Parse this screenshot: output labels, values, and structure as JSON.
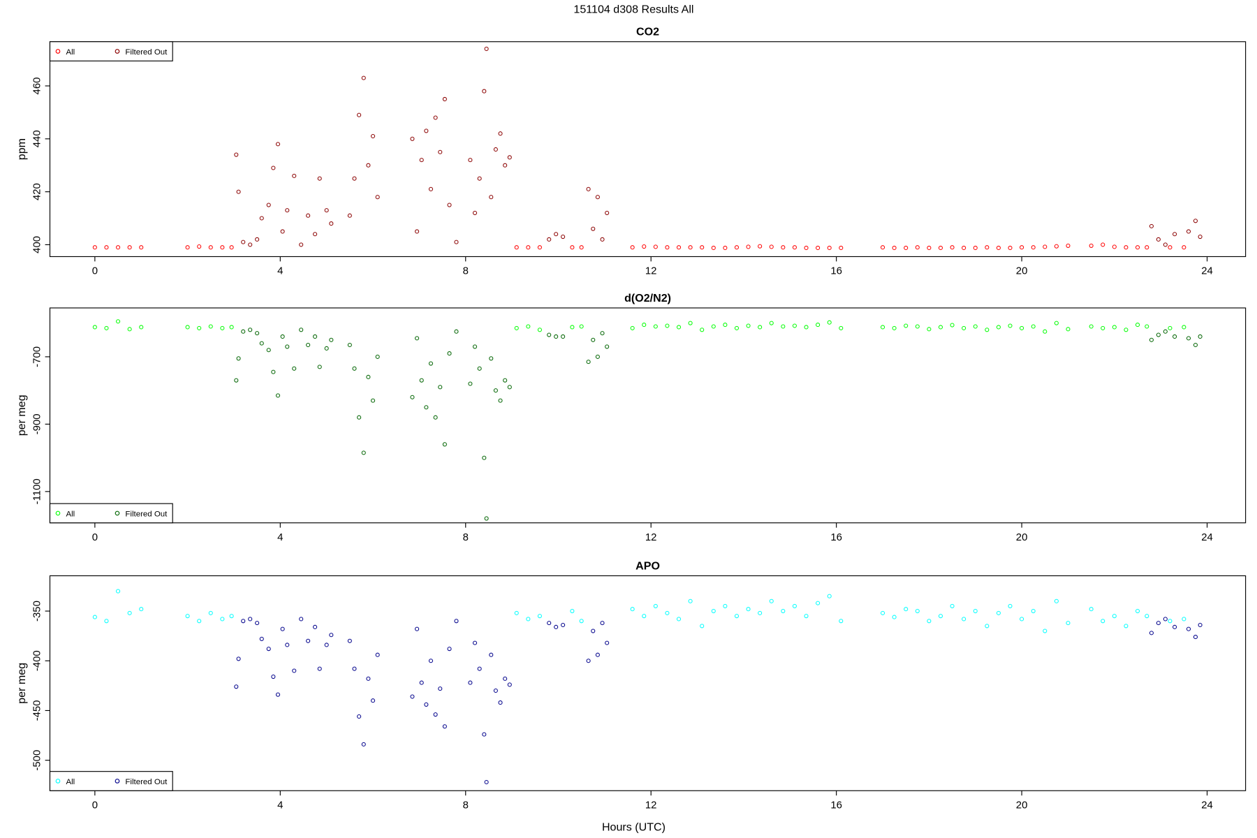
{
  "title": "151104   d308   Results All",
  "x_label": "Hours (UTC)",
  "chart_data": [
    {
      "type": "scatter",
      "title": "CO2",
      "y_label": "ppm",
      "legend": "top-left",
      "xlim": [
        -0.97,
        24.83
      ],
      "xticks": [
        0,
        4,
        8,
        12,
        16,
        20,
        24
      ],
      "ylim": [
        395.5,
        476.7
      ],
      "yticks": [
        400,
        420,
        440,
        460
      ],
      "series": [
        {
          "name": "All",
          "color": "#ff0000",
          "x": [
            0.0,
            0.25,
            0.5,
            0.75,
            1.0,
            2.0,
            2.25,
            2.5,
            2.75,
            2.95,
            9.1,
            9.35,
            9.6,
            10.3,
            10.5,
            11.6,
            11.85,
            12.1,
            12.35,
            12.6,
            12.85,
            13.1,
            13.35,
            13.6,
            13.85,
            14.1,
            14.35,
            14.6,
            14.85,
            15.1,
            15.35,
            15.6,
            15.85,
            16.1,
            17.0,
            17.25,
            17.5,
            17.75,
            18.0,
            18.25,
            18.5,
            18.75,
            19.0,
            19.25,
            19.5,
            19.75,
            20.0,
            20.25,
            20.5,
            20.75,
            21.0,
            21.5,
            21.75,
            22.0,
            22.25,
            22.5,
            22.7,
            23.2,
            23.5
          ],
          "values": [
            399,
            399,
            399,
            399,
            399,
            399,
            399.3,
            399,
            399,
            399,
            399,
            399,
            399,
            399,
            399,
            399,
            399.3,
            399.2,
            399,
            399,
            399,
            399,
            398.8,
            398.8,
            399,
            399.2,
            399.4,
            399.2,
            399,
            399,
            398.8,
            398.8,
            398.8,
            398.8,
            399,
            398.8,
            398.8,
            399,
            398.8,
            398.8,
            399,
            398.8,
            398.8,
            399,
            398.8,
            398.8,
            399,
            399,
            399.2,
            399.4,
            399.6,
            399.6,
            400,
            399.2,
            399,
            399,
            399,
            399,
            399
          ]
        },
        {
          "name": "Filtered Out",
          "color": "#8b0000",
          "x": [
            3.05,
            3.1,
            3.2,
            3.35,
            3.5,
            3.6,
            3.75,
            3.85,
            3.95,
            4.05,
            4.15,
            4.3,
            4.45,
            4.6,
            4.75,
            4.85,
            5.0,
            5.1,
            5.5,
            5.6,
            5.7,
            5.8,
            5.9,
            6.0,
            6.1,
            6.85,
            6.95,
            7.05,
            7.15,
            7.25,
            7.35,
            7.45,
            7.55,
            7.65,
            7.8,
            8.1,
            8.2,
            8.3,
            8.4,
            8.45,
            8.55,
            8.65,
            8.75,
            8.85,
            8.95,
            9.8,
            9.95,
            10.1,
            10.65,
            10.75,
            10.85,
            10.95,
            11.05,
            22.8,
            22.95,
            23.1,
            23.3,
            23.6,
            23.75,
            23.85
          ],
          "values": [
            434,
            420,
            401,
            400,
            402,
            410,
            415,
            429,
            438,
            405,
            413,
            426,
            400,
            411,
            404,
            425,
            413,
            408,
            411,
            425,
            449,
            463,
            430,
            441,
            418,
            440,
            405,
            432,
            443,
            421,
            448,
            435,
            455,
            415,
            401,
            432,
            412,
            425,
            458,
            474,
            418,
            436,
            442,
            430,
            433,
            402,
            404,
            403,
            421,
            406,
            418,
            402,
            412,
            407,
            402,
            400,
            404,
            405,
            409,
            403
          ]
        }
      ]
    },
    {
      "type": "scatter",
      "title": "d(O2/N2)",
      "y_label": "per meg",
      "legend": "bottom-left",
      "xlim": [
        -0.97,
        24.83
      ],
      "xticks": [
        0,
        4,
        8,
        12,
        16,
        20,
        24
      ],
      "ylim": [
        -1193,
        -555
      ],
      "yticks": [
        -700,
        -900,
        -1100
      ],
      "series": [
        {
          "name": "All",
          "color": "#00ff00",
          "x": [
            0.0,
            0.25,
            0.5,
            0.75,
            1.0,
            2.0,
            2.25,
            2.5,
            2.75,
            2.95,
            9.1,
            9.35,
            9.6,
            10.3,
            10.5,
            11.6,
            11.85,
            12.1,
            12.35,
            12.6,
            12.85,
            13.1,
            13.35,
            13.6,
            13.85,
            14.1,
            14.35,
            14.6,
            14.85,
            15.1,
            15.35,
            15.6,
            15.85,
            16.1,
            17.0,
            17.25,
            17.5,
            17.75,
            18.0,
            18.25,
            18.5,
            18.75,
            19.0,
            19.25,
            19.5,
            19.75,
            20.0,
            20.25,
            20.5,
            20.75,
            21.0,
            21.5,
            21.75,
            22.0,
            22.25,
            22.5,
            22.7,
            23.2,
            23.5
          ],
          "values": [
            -612,
            -615,
            -595,
            -618,
            -612,
            -612,
            -615,
            -610,
            -615,
            -612,
            -615,
            -610,
            -620,
            -612,
            -610,
            -615,
            -605,
            -610,
            -608,
            -612,
            -600,
            -620,
            -610,
            -605,
            -615,
            -608,
            -612,
            -600,
            -610,
            -608,
            -612,
            -605,
            -598,
            -615,
            -612,
            -615,
            -608,
            -610,
            -618,
            -612,
            -606,
            -615,
            -610,
            -620,
            -612,
            -608,
            -615,
            -610,
            -625,
            -600,
            -618,
            -610,
            -615,
            -612,
            -620,
            -605,
            -610,
            -615,
            -612
          ]
        },
        {
          "name": "Filtered Out",
          "color": "#006400",
          "x": [
            3.05,
            3.1,
            3.2,
            3.35,
            3.5,
            3.6,
            3.75,
            3.85,
            3.95,
            4.05,
            4.15,
            4.3,
            4.45,
            4.6,
            4.75,
            4.85,
            5.0,
            5.1,
            5.5,
            5.6,
            5.7,
            5.8,
            5.9,
            6.0,
            6.1,
            6.85,
            6.95,
            7.05,
            7.15,
            7.25,
            7.35,
            7.45,
            7.55,
            7.65,
            7.8,
            8.1,
            8.2,
            8.3,
            8.4,
            8.45,
            8.55,
            8.65,
            8.75,
            8.85,
            8.95,
            9.8,
            9.95,
            10.1,
            10.65,
            10.75,
            10.85,
            10.95,
            11.05,
            22.8,
            22.95,
            23.1,
            23.3,
            23.6,
            23.75,
            23.85
          ],
          "values": [
            -770,
            -705,
            -625,
            -620,
            -630,
            -660,
            -680,
            -745,
            -815,
            -640,
            -670,
            -735,
            -620,
            -665,
            -640,
            -730,
            -675,
            -650,
            -665,
            -735,
            -880,
            -985,
            -760,
            -830,
            -700,
            -820,
            -645,
            -770,
            -850,
            -720,
            -880,
            -790,
            -960,
            -690,
            -625,
            -780,
            -670,
            -735,
            -1000,
            -1180,
            -705,
            -800,
            -830,
            -770,
            -790,
            -635,
            -640,
            -640,
            -715,
            -650,
            -700,
            -630,
            -670,
            -650,
            -635,
            -625,
            -640,
            -645,
            -665,
            -640
          ]
        }
      ]
    },
    {
      "type": "scatter",
      "title": "APO",
      "y_label": "per meg",
      "legend": "bottom-left",
      "xlim": [
        -0.97,
        24.83
      ],
      "xticks": [
        0,
        4,
        8,
        12,
        16,
        20,
        24
      ],
      "ylim": [
        -530.6,
        -314.5
      ],
      "yticks": [
        -350,
        -400,
        -450,
        -500
      ],
      "series": [
        {
          "name": "All",
          "color": "#00ffff",
          "x": [
            0.0,
            0.25,
            0.5,
            0.75,
            1.0,
            2.0,
            2.25,
            2.5,
            2.75,
            2.95,
            9.1,
            9.35,
            9.6,
            10.3,
            10.5,
            11.6,
            11.85,
            12.1,
            12.35,
            12.6,
            12.85,
            13.1,
            13.35,
            13.6,
            13.85,
            14.1,
            14.35,
            14.6,
            14.85,
            15.1,
            15.35,
            15.6,
            15.85,
            16.1,
            17.0,
            17.25,
            17.5,
            17.75,
            18.0,
            18.25,
            18.5,
            18.75,
            19.0,
            19.25,
            19.5,
            19.75,
            20.0,
            20.25,
            20.5,
            20.75,
            21.0,
            21.5,
            21.75,
            22.0,
            22.25,
            22.5,
            22.7,
            23.2,
            23.5
          ],
          "values": [
            -356,
            -360,
            -330,
            -352,
            -348,
            -355,
            -360,
            -352,
            -358,
            -355,
            -352,
            -358,
            -355,
            -350,
            -360,
            -348,
            -355,
            -345,
            -352,
            -358,
            -340,
            -365,
            -350,
            -345,
            -355,
            -348,
            -352,
            -340,
            -350,
            -345,
            -355,
            -342,
            -335,
            -360,
            -352,
            -356,
            -348,
            -350,
            -360,
            -355,
            -345,
            -358,
            -350,
            -365,
            -352,
            -345,
            -358,
            -350,
            -370,
            -340,
            -362,
            -348,
            -360,
            -355,
            -365,
            -350,
            -355,
            -360,
            -358
          ]
        },
        {
          "name": "Filtered Out",
          "color": "#00008b",
          "x": [
            3.05,
            3.1,
            3.2,
            3.35,
            3.5,
            3.6,
            3.75,
            3.85,
            3.95,
            4.05,
            4.15,
            4.3,
            4.45,
            4.6,
            4.75,
            4.85,
            5.0,
            5.1,
            5.5,
            5.6,
            5.7,
            5.8,
            5.9,
            6.0,
            6.1,
            6.85,
            6.95,
            7.05,
            7.15,
            7.25,
            7.35,
            7.45,
            7.55,
            7.65,
            7.8,
            8.1,
            8.2,
            8.3,
            8.4,
            8.45,
            8.55,
            8.65,
            8.75,
            8.85,
            8.95,
            9.8,
            9.95,
            10.1,
            10.65,
            10.75,
            10.85,
            10.95,
            11.05,
            22.8,
            22.95,
            23.1,
            23.3,
            23.6,
            23.75,
            23.85
          ],
          "values": [
            -426,
            -398,
            -360,
            -358,
            -362,
            -378,
            -388,
            -416,
            -434,
            -368,
            -384,
            -410,
            -358,
            -380,
            -366,
            -408,
            -384,
            -374,
            -380,
            -408,
            -456,
            -484,
            -418,
            -440,
            -394,
            -436,
            -368,
            -422,
            -444,
            -400,
            -454,
            -428,
            -466,
            -388,
            -360,
            -422,
            -382,
            -408,
            -474,
            -522,
            -394,
            -430,
            -442,
            -418,
            -424,
            -362,
            -366,
            -364,
            -400,
            -370,
            -394,
            -362,
            -382,
            -372,
            -362,
            -358,
            -366,
            -368,
            -376,
            -364
          ]
        }
      ]
    }
  ]
}
